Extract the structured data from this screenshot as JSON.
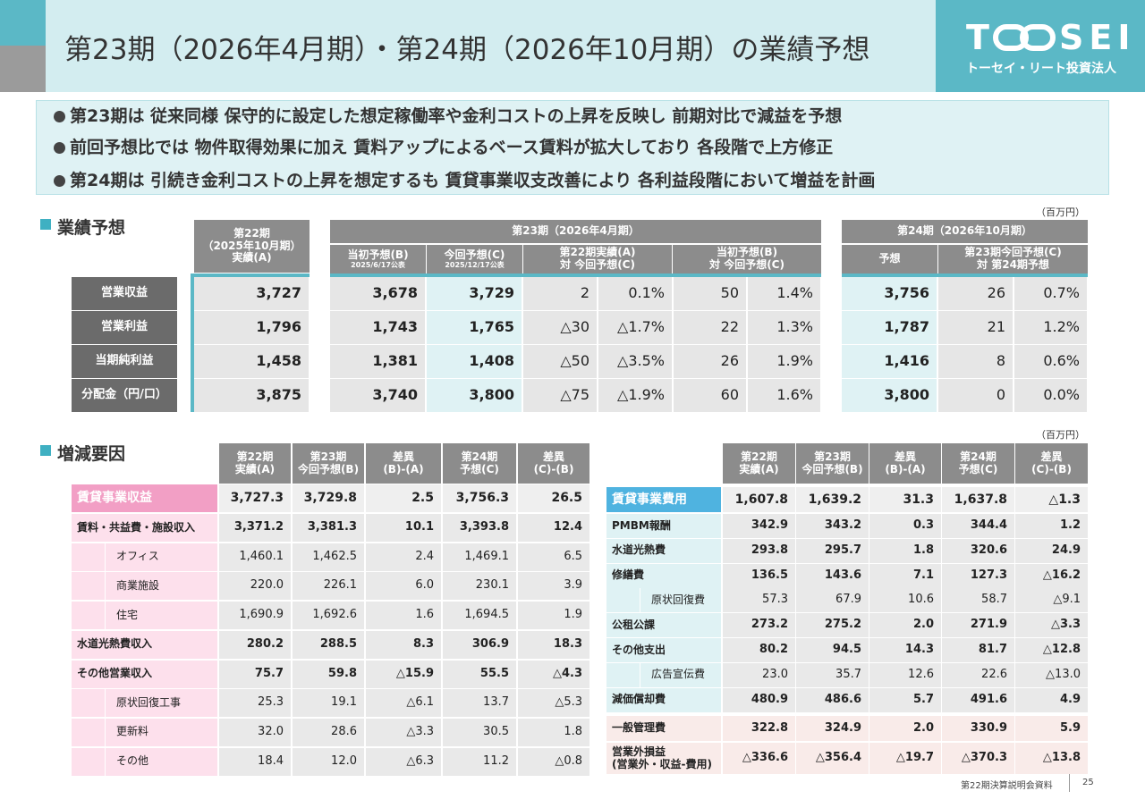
{
  "header": {
    "title": "第23期（2026年4月期）・第24期（2026年10月期）の業績予想"
  },
  "logo": {
    "mark_left": "T",
    "mark_right": "SEI",
    "name": "トーセイ・リート投資法人"
  },
  "bullets": [
    "第23期は 従来同様 保守的に設定した想定稼働率や金利コストの上昇を反映し 前期対比で減益を予想",
    "前回予想比では 物件取得効果に加え 賃料アップによるベース賃料が拡大しており 各段階で上方修正",
    "第24期は 引続き金利コストの上昇を想定するも 賃貸事業収支改善により 各利益段階において増益を計画"
  ],
  "forecast": {
    "title": "業績予想",
    "unit": "（百万円）",
    "fy22_header": [
      "第22期",
      "（2025年10月期）",
      "実績(A)"
    ],
    "fy23_header": "第23期（2026年4月期）",
    "fy23_sub": [
      [
        "当初予想(B)",
        "2025/6/17公表"
      ],
      [
        "今回予想(C)",
        "2025/12/17公表"
      ],
      [
        "第22期実績(A)",
        "対 今回予想(C)"
      ],
      [
        "当初予想(B)",
        "対 今回予想(C)"
      ]
    ],
    "fy24_header": "第24期（2026年10月期）",
    "fy24_sub": [
      "予想",
      [
        "第23期今回予想(C)",
        "対 第24期予想"
      ]
    ],
    "rows": [
      {
        "label": "営業収益",
        "values": [
          "3,727",
          "3,678",
          "3,729",
          "2",
          "0.1%",
          "50",
          "1.4%",
          "3,756",
          "26",
          "0.7%"
        ]
      },
      {
        "label": "営業利益",
        "values": [
          "1,796",
          "1,743",
          "1,765",
          "△30",
          "△1.7%",
          "22",
          "1.3%",
          "1,787",
          "21",
          "1.2%"
        ]
      },
      {
        "label": "当期純利益",
        "values": [
          "1,458",
          "1,381",
          "1,408",
          "△50",
          "△3.5%",
          "26",
          "1.9%",
          "1,416",
          "8",
          "0.6%"
        ]
      },
      {
        "label": "分配金（円/口）",
        "values": [
          "3,875",
          "3,740",
          "3,800",
          "△75",
          "△1.9%",
          "60",
          "1.6%",
          "3,800",
          "0",
          "0.0%"
        ]
      }
    ]
  },
  "factors": {
    "title": "増減要因",
    "unit": "（百万円）",
    "headers": [
      [
        "第22期",
        "実績(A)"
      ],
      [
        "第23期",
        "今回予想(B)"
      ],
      [
        "差異",
        "(B)-(A)"
      ],
      [
        "第24期",
        "予想(C)"
      ],
      [
        "差異",
        "(C)-(B)"
      ]
    ],
    "revenue": {
      "label": "賃貸事業収益",
      "values": [
        "3,727.3",
        "3,729.8",
        "2.5",
        "3,756.3",
        "26.5"
      ],
      "items": [
        {
          "label": "賃料・共益費・施設収入",
          "values": [
            "3,371.2",
            "3,381.3",
            "10.1",
            "3,393.8",
            "12.4"
          ],
          "items": [
            {
              "label": "オフィス",
              "values": [
                "1,460.1",
                "1,462.5",
                "2.4",
                "1,469.1",
                "6.5"
              ]
            },
            {
              "label": "商業施設",
              "values": [
                "220.0",
                "226.1",
                "6.0",
                "230.1",
                "3.9"
              ]
            },
            {
              "label": "住宅",
              "values": [
                "1,690.9",
                "1,692.6",
                "1.6",
                "1,694.5",
                "1.9"
              ]
            }
          ]
        },
        {
          "label": "水道光熱費収入",
          "values": [
            "280.2",
            "288.5",
            "8.3",
            "306.9",
            "18.3"
          ]
        },
        {
          "label": "その他営業収入",
          "values": [
            "75.7",
            "59.8",
            "△15.9",
            "55.5",
            "△4.3"
          ],
          "items": [
            {
              "label": "原状回復工事",
              "values": [
                "25.3",
                "19.1",
                "△6.1",
                "13.7",
                "△5.3"
              ]
            },
            {
              "label": "更新料",
              "values": [
                "32.0",
                "28.6",
                "△3.3",
                "30.5",
                "1.8"
              ]
            },
            {
              "label": "その他",
              "values": [
                "18.4",
                "12.0",
                "△6.3",
                "11.2",
                "△0.8"
              ]
            }
          ]
        }
      ]
    },
    "expenses": {
      "label": "賃貸事業費用",
      "values": [
        "1,607.8",
        "1,639.2",
        "31.3",
        "1,637.8",
        "△1.3"
      ],
      "items": [
        {
          "label": "PMBM報酬",
          "values": [
            "342.9",
            "343.2",
            "0.3",
            "344.4",
            "1.2"
          ]
        },
        {
          "label": "水道光熱費",
          "values": [
            "293.8",
            "295.7",
            "1.8",
            "320.6",
            "24.9"
          ]
        },
        {
          "label": "修繕費",
          "values": [
            "136.5",
            "143.6",
            "7.1",
            "127.3",
            "△16.2"
          ],
          "items": [
            {
              "label": "原状回復費",
              "values": [
                "57.3",
                "67.9",
                "10.6",
                "58.7",
                "△9.1"
              ]
            }
          ]
        },
        {
          "label": "公租公課",
          "values": [
            "273.2",
            "275.2",
            "2.0",
            "271.9",
            "△3.3"
          ]
        },
        {
          "label": "その他支出",
          "values": [
            "80.2",
            "94.5",
            "14.3",
            "81.7",
            "△12.8"
          ],
          "items": [
            {
              "label": "広告宣伝費",
              "values": [
                "23.0",
                "35.7",
                "12.6",
                "22.6",
                "△13.0"
              ]
            }
          ]
        },
        {
          "label": "減価償却費",
          "values": [
            "480.9",
            "486.6",
            "5.7",
            "491.6",
            "4.9"
          ]
        }
      ]
    },
    "other_rows": [
      {
        "label": "一般管理費",
        "values": [
          "322.8",
          "324.9",
          "2.0",
          "330.9",
          "5.9"
        ]
      },
      {
        "label": [
          "営業外損益",
          "(営業外・収益-費用)"
        ],
        "values": [
          "△336.6",
          "△356.4",
          "△19.7",
          "△370.3",
          "△13.8"
        ]
      }
    ]
  },
  "footer": {
    "source": "第22期決算説明会資料",
    "page": "25"
  }
}
